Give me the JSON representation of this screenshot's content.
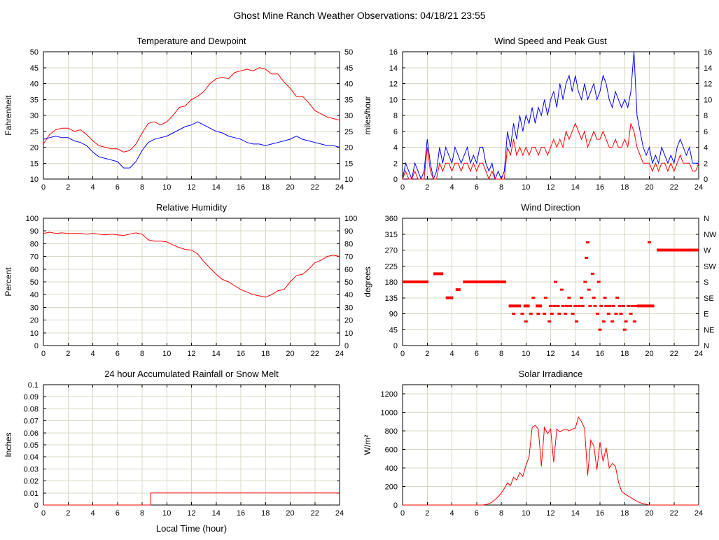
{
  "page": {
    "title": "Ghost Mine Ranch Weather Observations: 04/18/21 23:55"
  },
  "colors": {
    "red": "#ff0000",
    "blue": "#0000ff",
    "grid": "#d8d8c4",
    "frame": "#000000"
  },
  "chart_data": [
    {
      "id": "temperature-dewpoint",
      "type": "line",
      "title": "Temperature and Dewpoint",
      "ylabel": "Fahrenheit",
      "xlabel": "",
      "xlim": [
        0,
        24
      ],
      "ylim": [
        10,
        50
      ],
      "xticks": [
        0,
        2,
        4,
        6,
        8,
        10,
        12,
        14,
        16,
        18,
        20,
        22,
        24
      ],
      "yticks": [
        10,
        15,
        20,
        25,
        30,
        35,
        40,
        45,
        50
      ],
      "right_labels": "mirror",
      "grid": true,
      "series": [
        {
          "name": "temperature",
          "color": "#ff0000",
          "xstart": 0,
          "xstep": 0.5,
          "y": [
            21,
            24,
            25.5,
            26,
            26,
            25,
            25.5,
            24,
            22,
            20.5,
            20,
            19.5,
            19.5,
            18.5,
            19,
            21,
            24.5,
            27.5,
            28,
            27,
            28,
            30,
            32.5,
            33,
            35,
            36,
            37.5,
            40,
            41.5,
            42,
            41.5,
            43.5,
            44,
            44.5,
            44,
            45,
            44.5,
            43,
            43,
            40.5,
            38.5,
            36,
            36,
            34,
            31.5,
            30.5,
            29.5,
            29,
            28.5
          ]
        },
        {
          "name": "dewpoint",
          "color": "#0000ff",
          "xstart": 0,
          "xstep": 0.5,
          "y": [
            22.5,
            23,
            23.5,
            23,
            23,
            22,
            21.5,
            20.5,
            18.5,
            17,
            16.5,
            16,
            15.5,
            13.5,
            13.5,
            15.5,
            19,
            21.5,
            22.5,
            23,
            23.5,
            24.5,
            25.5,
            26.5,
            27,
            28,
            27,
            26,
            25,
            24.5,
            23.5,
            23,
            22.5,
            21.5,
            21,
            21,
            20.5,
            21,
            21.5,
            22,
            22.5,
            23.5,
            22.5,
            22,
            21.5,
            21,
            20.5,
            20.5,
            20
          ]
        }
      ]
    },
    {
      "id": "wind-speed-gust",
      "type": "line",
      "title": "Wind Speed and Peak Gust",
      "ylabel": "miles/hour",
      "xlabel": "",
      "xlim": [
        0,
        24
      ],
      "ylim": [
        0,
        16
      ],
      "xticks": [
        0,
        2,
        4,
        6,
        8,
        10,
        12,
        14,
        16,
        18,
        20,
        22,
        24
      ],
      "yticks": [
        0,
        2,
        4,
        6,
        8,
        10,
        12,
        14,
        16
      ],
      "right_labels": "mirror",
      "grid": true,
      "series": [
        {
          "name": "peak-gust",
          "color": "#0000ff",
          "xstart": 0,
          "xstep": 0.25,
          "y": [
            0,
            2,
            1,
            0,
            2,
            1,
            0,
            1,
            5,
            2,
            0,
            1,
            4,
            2,
            4,
            3,
            2,
            4,
            3,
            2,
            3,
            4,
            2,
            3,
            2,
            4,
            4,
            2,
            1,
            2,
            0,
            1,
            0,
            1,
            6,
            4,
            7,
            5,
            8,
            6,
            8,
            7,
            9,
            7,
            9,
            8,
            10,
            8,
            10,
            11,
            9,
            12,
            10,
            12,
            13,
            11,
            13,
            11,
            10,
            12,
            10,
            11,
            12,
            10,
            11,
            13,
            12,
            10,
            9,
            11,
            10,
            9,
            10,
            9,
            11,
            16,
            8,
            6,
            4,
            3,
            4,
            2,
            3,
            2,
            4,
            3,
            2,
            3,
            2,
            4,
            5,
            4,
            3,
            4,
            2,
            2,
            2
          ]
        },
        {
          "name": "wind-speed",
          "color": "#ff0000",
          "xstart": 0,
          "xstep": 0.25,
          "y": [
            0,
            1,
            0,
            0,
            1,
            0,
            0,
            0,
            4,
            1,
            0,
            0,
            2,
            1,
            2,
            2,
            1,
            2,
            2,
            1,
            2,
            2,
            1,
            2,
            1,
            2,
            2,
            1,
            0,
            1,
            0,
            0,
            0,
            0,
            4,
            3,
            5,
            3,
            4,
            3,
            4,
            3,
            4,
            4,
            3,
            4,
            4,
            3,
            4,
            5,
            4,
            5,
            4,
            6,
            5,
            6,
            7,
            6,
            5,
            6,
            4,
            5,
            6,
            5,
            5,
            6,
            5,
            4,
            4,
            5,
            4,
            4,
            5,
            4,
            7,
            6,
            4,
            3,
            2,
            2,
            2,
            1,
            2,
            1,
            2,
            2,
            1,
            2,
            1,
            2,
            3,
            2,
            2,
            2,
            1,
            1,
            2
          ]
        }
      ]
    },
    {
      "id": "relative-humidity",
      "type": "line",
      "title": "Relative Humidity",
      "ylabel": "Percent",
      "xlabel": "",
      "xlim": [
        0,
        24
      ],
      "ylim": [
        0,
        100
      ],
      "xticks": [
        0,
        2,
        4,
        6,
        8,
        10,
        12,
        14,
        16,
        18,
        20,
        22,
        24
      ],
      "yticks": [
        0,
        10,
        20,
        30,
        40,
        50,
        60,
        70,
        80,
        90,
        100
      ],
      "right_labels": "mirror",
      "grid": true,
      "series": [
        {
          "name": "humidity",
          "color": "#ff0000",
          "xstart": 0,
          "xstep": 0.5,
          "y": [
            88,
            89,
            88,
            88.5,
            88,
            88,
            88,
            87.5,
            88,
            87.5,
            87,
            87.5,
            87,
            86.5,
            87.5,
            88.5,
            87.5,
            83,
            82,
            82,
            81.5,
            79,
            77,
            75.5,
            75,
            72,
            66,
            61,
            56,
            52,
            50,
            47,
            44,
            42,
            40,
            39,
            38,
            40,
            43,
            44,
            50,
            55,
            56,
            60,
            65,
            67,
            70,
            71,
            70
          ]
        }
      ]
    },
    {
      "id": "wind-direction",
      "type": "scatter",
      "title": "Wind Direction",
      "ylabel": "degrees",
      "xlabel": "",
      "xlim": [
        0,
        24
      ],
      "ylim": [
        0,
        360
      ],
      "xticks": [
        0,
        2,
        4,
        6,
        8,
        10,
        12,
        14,
        16,
        18,
        20,
        22,
        24
      ],
      "yticks": [
        0,
        45,
        90,
        135,
        180,
        225,
        270,
        315,
        360
      ],
      "right_labels": [
        "N",
        "NE",
        "E",
        "SE",
        "S",
        "SW",
        "W",
        "NW",
        "N"
      ],
      "grid": true,
      "series": [
        {
          "name": "direction",
          "color": "#ff0000",
          "segments": [
            [
              0,
              2.1,
              180
            ],
            [
              2.5,
              3.3,
              203
            ],
            [
              3.5,
              4.1,
              135
            ],
            [
              4.3,
              4.7,
              158
            ],
            [
              4.9,
              8.4,
              180
            ],
            [
              8.6,
              9.6,
              112
            ],
            [
              9.8,
              10.3,
              112
            ],
            [
              10.8,
              11.3,
              112
            ],
            [
              19.0,
              20.4,
              112
            ],
            [
              20.6,
              24,
              270
            ]
          ],
          "points": [
            [
              9.0,
              90
            ],
            [
              9.7,
              90
            ],
            [
              10.0,
              68
            ],
            [
              10.4,
              90
            ],
            [
              10.6,
              135
            ],
            [
              11.0,
              90
            ],
            [
              11.5,
              90
            ],
            [
              11.6,
              135
            ],
            [
              11.9,
              68
            ],
            [
              12.0,
              112
            ],
            [
              12.1,
              90
            ],
            [
              12.3,
              112
            ],
            [
              12.4,
              180
            ],
            [
              12.6,
              112
            ],
            [
              12.7,
              90
            ],
            [
              12.9,
              158
            ],
            [
              13.0,
              112
            ],
            [
              13.2,
              90
            ],
            [
              13.3,
              112
            ],
            [
              13.5,
              135
            ],
            [
              13.6,
              112
            ],
            [
              13.8,
              90
            ],
            [
              14.0,
              112
            ],
            [
              14.1,
              68
            ],
            [
              14.3,
              112
            ],
            [
              14.5,
              135
            ],
            [
              14.6,
              112
            ],
            [
              14.8,
              180
            ],
            [
              14.9,
              248
            ],
            [
              15.0,
              292
            ],
            [
              15.1,
              158
            ],
            [
              15.2,
              112
            ],
            [
              15.4,
              203
            ],
            [
              15.5,
              135
            ],
            [
              15.6,
              112
            ],
            [
              15.8,
              90
            ],
            [
              15.9,
              180
            ],
            [
              16.0,
              45
            ],
            [
              16.1,
              112
            ],
            [
              16.3,
              68
            ],
            [
              16.4,
              135
            ],
            [
              16.5,
              112
            ],
            [
              16.7,
              90
            ],
            [
              16.8,
              112
            ],
            [
              17.0,
              68
            ],
            [
              17.1,
              112
            ],
            [
              17.3,
              90
            ],
            [
              17.4,
              135
            ],
            [
              17.6,
              112
            ],
            [
              17.7,
              90
            ],
            [
              17.9,
              112
            ],
            [
              18.0,
              45
            ],
            [
              18.1,
              68
            ],
            [
              18.3,
              112
            ],
            [
              18.5,
              90
            ],
            [
              18.6,
              112
            ],
            [
              18.8,
              68
            ],
            [
              18.9,
              112
            ],
            [
              20.0,
              292
            ]
          ]
        }
      ]
    },
    {
      "id": "rainfall",
      "type": "line",
      "title": "24 hour Accumulated Rainfall or Snow Melt",
      "ylabel": "Inches",
      "xlabel": "Local Time (hour)",
      "xlim": [
        0,
        24
      ],
      "ylim": [
        0,
        0.1
      ],
      "xticks": [
        0,
        2,
        4,
        6,
        8,
        10,
        12,
        14,
        16,
        18,
        20,
        22,
        24
      ],
      "yticks": [
        0,
        0.01,
        0.02,
        0.03,
        0.04,
        0.05,
        0.06,
        0.07,
        0.08,
        0.09,
        0.1
      ],
      "right_labels": null,
      "grid": true,
      "series": [
        {
          "name": "rainfall",
          "color": "#ff0000",
          "x": [
            0,
            8.7,
            8.7,
            24
          ],
          "y": [
            0,
            0,
            0.01,
            0.01
          ]
        }
      ]
    },
    {
      "id": "solar-irradiance",
      "type": "line",
      "title": "Solar Irradiance",
      "ylabel": "W/m²",
      "xlabel": "",
      "xlim": [
        0,
        24
      ],
      "ylim": [
        0,
        1300
      ],
      "xticks": [
        0,
        2,
        4,
        6,
        8,
        10,
        12,
        14,
        16,
        18,
        20,
        22,
        24
      ],
      "yticks": [
        0,
        200,
        400,
        600,
        800,
        1000,
        1200
      ],
      "right_labels": null,
      "grid": true,
      "series": [
        {
          "name": "solar",
          "color": "#ff0000",
          "x": [
            0,
            6.5,
            6.75,
            7,
            7.25,
            7.5,
            7.75,
            8,
            8.25,
            8.5,
            8.75,
            9,
            9.25,
            9.5,
            9.75,
            10,
            10.25,
            10.5,
            10.75,
            11,
            11.25,
            11.5,
            11.75,
            12,
            12.25,
            12.5,
            12.75,
            13,
            13.25,
            13.5,
            13.75,
            14,
            14.25,
            14.5,
            14.75,
            15,
            15.25,
            15.5,
            15.75,
            16,
            16.25,
            16.5,
            16.75,
            17,
            17.25,
            17.5,
            17.75,
            18,
            18.25,
            18.5,
            18.75,
            19,
            19.25,
            19.5,
            19.75,
            20,
            24
          ],
          "y": [
            0,
            0,
            5,
            15,
            30,
            60,
            90,
            130,
            180,
            240,
            210,
            300,
            270,
            350,
            310,
            430,
            520,
            840,
            860,
            820,
            420,
            840,
            770,
            820,
            460,
            820,
            790,
            810,
            820,
            800,
            820,
            830,
            950,
            900,
            830,
            320,
            700,
            640,
            380,
            680,
            470,
            620,
            400,
            450,
            420,
            250,
            150,
            120,
            100,
            80,
            60,
            40,
            25,
            15,
            8,
            0,
            0
          ]
        }
      ]
    }
  ]
}
